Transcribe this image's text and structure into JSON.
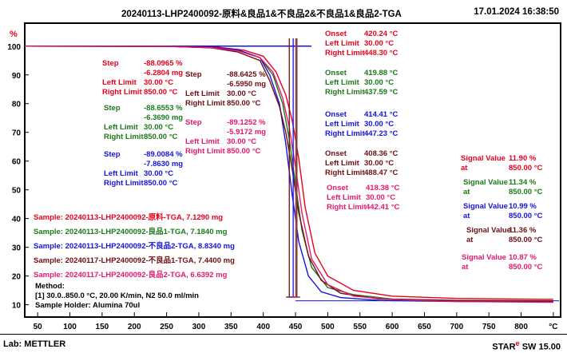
{
  "header": {
    "title": "20240113-LHP2400092-原料&良品1&不良品2&不良品1&良品2-TGA",
    "datetime": "17.01.2024 16:38:50"
  },
  "footer": {
    "lab": "Lab: METTLER",
    "star_label": "STAR",
    "star_mark": "e",
    "sw": " SW 15.00"
  },
  "colors": {
    "red": "#e8001c",
    "green": "#1a7a1a",
    "blue": "#1414dc",
    "brown": "#6e0f14",
    "magenta": "#e6186e"
  },
  "chart_data": {
    "type": "line",
    "xlabel": "°C",
    "ylabel": "%",
    "xlim": [
      30,
      860
    ],
    "ylim": [
      6,
      108
    ],
    "xticks": [
      "50",
      "100",
      "150",
      "200",
      "250",
      "300",
      "350",
      "400",
      "450",
      "500",
      "550",
      "600",
      "650",
      "700",
      "750",
      "800",
      "°C"
    ],
    "yticks": [
      "100",
      "90",
      "80",
      "70",
      "60",
      "50",
      "40",
      "30",
      "20",
      "10"
    ],
    "series": [
      {
        "name": "Sample: 20240113-LHP2400092-原料-TGA, 7.1290 mg",
        "color": "red",
        "x": [
          30,
          250,
          330,
          370,
          400,
          420,
          435,
          445,
          455,
          465,
          480,
          500,
          540,
          600,
          700,
          850
        ],
        "y": [
          100,
          99.9,
          99.6,
          98.6,
          96.5,
          91,
          83,
          74,
          61,
          44,
          28,
          20,
          15,
          13,
          12.2,
          11.9
        ]
      },
      {
        "name": "Sample: 20240113-LHP2400092-良品1-TGA, 7.1840 mg",
        "color": "green",
        "x": [
          30,
          250,
          320,
          360,
          395,
          415,
          430,
          440,
          450,
          460,
          475,
          500,
          540,
          600,
          700,
          850
        ],
        "y": [
          100,
          99.9,
          99.5,
          98.5,
          96,
          90,
          80,
          68,
          52,
          36,
          23,
          16,
          13.5,
          12,
          11.5,
          11.34
        ]
      },
      {
        "name": "Sample: 20240113-LHP2400092-不良品2-TGA, 8.8340 mg",
        "color": "blue",
        "x": [
          30,
          250,
          320,
          360,
          395,
          410,
          425,
          435,
          445,
          455,
          470,
          490,
          520,
          580,
          700,
          850
        ],
        "y": [
          100,
          99.9,
          99.6,
          98.8,
          96,
          90,
          80,
          66,
          48,
          32,
          20,
          14.5,
          12.5,
          11.5,
          11.1,
          10.99
        ]
      },
      {
        "name": "Sample: 20240117-LHP2400092-不良品1-TGA, 7.4400 mg",
        "color": "brown",
        "x": [
          30,
          250,
          320,
          360,
          395,
          410,
          425,
          435,
          445,
          455,
          470,
          490,
          520,
          580,
          700,
          850
        ],
        "y": [
          100,
          99.9,
          99.4,
          98,
          95,
          88,
          79,
          70,
          57,
          42,
          27,
          18.5,
          14,
          12,
          11.5,
          11.36
        ]
      },
      {
        "name": "Sample: 20240117-LHP2400092-良品2-TGA, 6.6392 mg",
        "color": "magenta",
        "x": [
          30,
          250,
          320,
          360,
          395,
          415,
          430,
          440,
          450,
          460,
          475,
          500,
          540,
          600,
          700,
          850
        ],
        "y": [
          100,
          99.9,
          99.5,
          98.4,
          96,
          91,
          82,
          72,
          58,
          42,
          26,
          17,
          13,
          11.8,
          11.1,
          10.87
        ]
      }
    ],
    "onset_markers": [
      {
        "color": "red",
        "x": 420.24
      },
      {
        "color": "green",
        "x": 419.88
      },
      {
        "color": "blue",
        "x": 414.41
      },
      {
        "color": "brown",
        "x": 408.36
      },
      {
        "color": "magenta",
        "x": 418.38
      }
    ]
  },
  "annotations": {
    "steps": [
      {
        "color": "red",
        "lines": [
          [
            "Step",
            "-88.0965 %"
          ],
          [
            "",
            "-6.2804 mg"
          ],
          [
            "Left Limit",
            "30.00 °C"
          ],
          [
            "Right Limit",
            "850.00 °C"
          ]
        ]
      },
      {
        "color": "green",
        "lines": [
          [
            "Step",
            "-88.6553 %"
          ],
          [
            "",
            "-6.3690 mg"
          ],
          [
            "Left Limit",
            "30.00 °C"
          ],
          [
            "Right Limit",
            "850.00 °C"
          ]
        ]
      },
      {
        "color": "blue",
        "lines": [
          [
            "Step",
            "-89.0084 %"
          ],
          [
            "",
            "-7.8630 mg"
          ],
          [
            "Left Limit",
            "30.00 °C"
          ],
          [
            "Right Limit",
            "850.00 °C"
          ]
        ]
      },
      {
        "color": "brown",
        "lines": [
          [
            "Step",
            "-88.6425 %"
          ],
          [
            "",
            "-6.5950 mg"
          ],
          [
            "Left Limit",
            "30.00 °C"
          ],
          [
            "Right Limit",
            "850.00 °C"
          ]
        ]
      },
      {
        "color": "magenta",
        "lines": [
          [
            "Step",
            "-89.1252 %"
          ],
          [
            "",
            "-5.9172 mg"
          ],
          [
            "Left Limit",
            "30.00 °C"
          ],
          [
            "Right Limit",
            "850.00 °C"
          ]
        ]
      }
    ],
    "onsets": [
      {
        "color": "red",
        "lines": [
          [
            "Onset",
            "420.24 °C"
          ],
          [
            "Left Limit",
            "30.00 °C"
          ],
          [
            "Right Limit",
            "448.30 °C"
          ]
        ]
      },
      {
        "color": "green",
        "lines": [
          [
            "Onset",
            "419.88 °C"
          ],
          [
            "Left Limit",
            "30.00 °C"
          ],
          [
            "Right Limit",
            "437.59 °C"
          ]
        ]
      },
      {
        "color": "blue",
        "lines": [
          [
            "Onset",
            "414.41 °C"
          ],
          [
            "Left Limit",
            "30.00 °C"
          ],
          [
            "Right Limit",
            "447.23 °C"
          ]
        ]
      },
      {
        "color": "brown",
        "lines": [
          [
            "Onset",
            "408.36 °C"
          ],
          [
            "Left Limit",
            "30.00 °C"
          ],
          [
            "Right Limit",
            "488.47 °C"
          ]
        ]
      },
      {
        "color": "magenta",
        "lines": [
          [
            "Onset",
            "418.38 °C"
          ],
          [
            "Left Limit",
            "30.00 °C"
          ],
          [
            "Right Limit",
            "442.41 °C"
          ]
        ]
      }
    ],
    "signals": [
      {
        "color": "red",
        "lines": [
          [
            "Signal Value",
            "11.90 %"
          ],
          [
            "at",
            "850.00 °C"
          ]
        ]
      },
      {
        "color": "green",
        "lines": [
          [
            "Signal Value",
            "11.34 %"
          ],
          [
            "at",
            "850.00 °C"
          ]
        ]
      },
      {
        "color": "blue",
        "lines": [
          [
            "Signal Value",
            "10.99 %"
          ],
          [
            "at",
            "850.00 °C"
          ]
        ]
      },
      {
        "color": "brown",
        "lines": [
          [
            "Signal Value",
            "11.36 %"
          ],
          [
            "at",
            "850.00 °C"
          ]
        ]
      },
      {
        "color": "magenta",
        "lines": [
          [
            "Signal Value",
            "10.87 %"
          ],
          [
            "at",
            "850.00 °C"
          ]
        ]
      }
    ],
    "method": {
      "title": "Method:",
      "lines": [
        "[1] 30.0..850.0 °C, 20.00 K/min,  N2 50.0 ml/min",
        "Sample Holder: Alumina 70ul"
      ]
    }
  }
}
